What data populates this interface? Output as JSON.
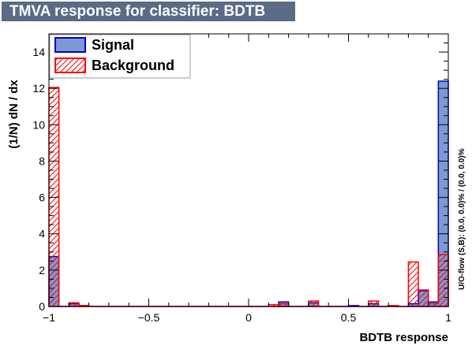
{
  "chart_data": {
    "type": "bar",
    "title": "TMVA response for classifier: BDTB",
    "xlabel": "BDTB response",
    "ylabel": "(1/N) dN / dx",
    "side_text": "U/O-flow (S,B): (0.0, 0.0)% / (0.0, 0.0)%",
    "xlim": [
      -1,
      1
    ],
    "ylim": [
      0,
      15
    ],
    "x_ticks": [
      -1,
      -0.5,
      0,
      0.5,
      1
    ],
    "x_tick_labels": [
      "−1",
      "−0.5",
      "0",
      "0.5",
      "1"
    ],
    "y_ticks": [
      0,
      2,
      4,
      6,
      8,
      10,
      12,
      14
    ],
    "y_tick_labels": [
      "0",
      "2",
      "4",
      "6",
      "8",
      "10",
      "12",
      "14"
    ],
    "bins": 40,
    "legend_position": "top-left",
    "series": [
      {
        "name": "Signal",
        "color": "#0000cc",
        "fill": "#7d99d1",
        "values": [
          2.75,
          0,
          0.15,
          0.05,
          0,
          0,
          0,
          0,
          0,
          0,
          0,
          0,
          0,
          0,
          0,
          0,
          0,
          0,
          0,
          0,
          0,
          0,
          0,
          0.25,
          0,
          0,
          0.2,
          0,
          0,
          0,
          0.05,
          0,
          0.15,
          0,
          0,
          0,
          0.15,
          0.9,
          0.25,
          12.4
        ]
      },
      {
        "name": "Background",
        "color": "#ff0000",
        "fill": "hatched",
        "values": [
          12.05,
          0,
          0.2,
          0.05,
          0,
          0,
          0,
          0,
          0,
          0,
          0,
          0,
          0,
          0,
          0,
          0,
          0,
          0,
          0,
          0,
          0,
          0,
          0.1,
          0.15,
          0,
          0,
          0.3,
          0,
          0,
          0,
          0,
          0,
          0.3,
          0,
          0.05,
          0,
          2.45,
          0.85,
          0.15,
          2.85
        ]
      }
    ]
  }
}
